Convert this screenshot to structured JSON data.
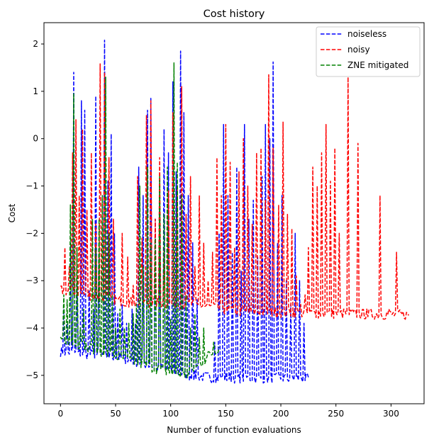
{
  "chart_data": {
    "type": "line",
    "title": "Cost history",
    "xlabel": "Number of function evaluations",
    "ylabel": "Cost",
    "xlim": [
      -15,
      330
    ],
    "ylim": [
      -5.6,
      2.45
    ],
    "xticks": [
      0,
      50,
      100,
      150,
      200,
      250,
      300
    ],
    "yticks": [
      -5,
      -4,
      -3,
      -2,
      -1,
      0,
      1,
      2
    ],
    "grid": false,
    "legend_position": "top-right",
    "series": [
      {
        "name": "noiseless",
        "color": "#0000ff",
        "dash": "dashed",
        "x_start": 0,
        "x_end": 225,
        "baseline": [
          [
            0,
            -4.5
          ],
          [
            50,
            -4.6
          ],
          [
            100,
            -4.9
          ],
          [
            115,
            -5.0
          ],
          [
            140,
            -5.05
          ],
          [
            225,
            -5.07
          ]
        ],
        "peaks": [
          [
            3,
            -3.6
          ],
          [
            6,
            -3.9
          ],
          [
            9,
            -2.2
          ],
          [
            12,
            1.4
          ],
          [
            15,
            -3.0
          ],
          [
            19,
            0.8
          ],
          [
            22,
            0.6
          ],
          [
            26,
            -3.2
          ],
          [
            30,
            -3.6
          ],
          [
            32,
            0.9
          ],
          [
            35,
            -2.5
          ],
          [
            40,
            2.08
          ],
          [
            43,
            -0.9
          ],
          [
            46,
            0.1
          ],
          [
            49,
            -2.0
          ],
          [
            52,
            -3.7
          ],
          [
            56,
            -3.5
          ],
          [
            60,
            -3.9
          ],
          [
            65,
            -3.6
          ],
          [
            68,
            -3.9
          ],
          [
            71,
            -0.6
          ],
          [
            75,
            -1.2
          ],
          [
            79,
            0.6
          ],
          [
            82,
            0.85
          ],
          [
            86,
            -1.7
          ],
          [
            90,
            -2.0
          ],
          [
            94,
            0.2
          ],
          [
            98,
            -0.3
          ],
          [
            102,
            1.2
          ],
          [
            105,
            -0.7
          ],
          [
            109,
            1.85
          ],
          [
            112,
            0.55
          ],
          [
            116,
            -1.2
          ],
          [
            120,
            -2.2
          ],
          [
            124,
            -3.4
          ],
          [
            140,
            -4.3
          ],
          [
            144,
            -2.0
          ],
          [
            148,
            0.3
          ],
          [
            152,
            -1.2
          ],
          [
            156,
            -2.4
          ],
          [
            160,
            -0.6
          ],
          [
            164,
            -2.8
          ],
          [
            167,
            0.3
          ],
          [
            171,
            -1.7
          ],
          [
            175,
            -1.3
          ],
          [
            179,
            -2.5
          ],
          [
            183,
            -0.8
          ],
          [
            186,
            0.3
          ],
          [
            190,
            0.0
          ],
          [
            193,
            1.62
          ],
          [
            197,
            -2.2
          ],
          [
            201,
            -1.2
          ],
          [
            205,
            -3.0
          ],
          [
            209,
            -3.5
          ],
          [
            213,
            -2.0
          ],
          [
            217,
            -3.0
          ],
          [
            221,
            -3.9
          ]
        ]
      },
      {
        "name": "noisy",
        "color": "#ff0000",
        "dash": "dashed",
        "x_start": 0,
        "x_end": 316,
        "baseline": [
          [
            0,
            -3.2
          ],
          [
            60,
            -3.45
          ],
          [
            120,
            -3.5
          ],
          [
            160,
            -3.65
          ],
          [
            250,
            -3.7
          ],
          [
            316,
            -3.72
          ]
        ],
        "peaks": [
          [
            4,
            -2.3
          ],
          [
            8,
            -2.7
          ],
          [
            11,
            -0.3
          ],
          [
            14,
            0.4
          ],
          [
            17,
            -1.2
          ],
          [
            20,
            0.2
          ],
          [
            24,
            -1.5
          ],
          [
            28,
            -0.3
          ],
          [
            32,
            -1.8
          ],
          [
            36,
            1.58
          ],
          [
            40,
            1.4
          ],
          [
            44,
            -0.4
          ],
          [
            48,
            -1.7
          ],
          [
            52,
            -3.4
          ],
          [
            56,
            -2.0
          ],
          [
            61,
            -2.5
          ],
          [
            66,
            -3.1
          ],
          [
            70,
            -0.8
          ],
          [
            74,
            -2.1
          ],
          [
            78,
            0.5
          ],
          [
            82,
            0.8
          ],
          [
            86,
            -1.7
          ],
          [
            90,
            -0.4
          ],
          [
            94,
            -2.3
          ],
          [
            98,
            -1.1
          ],
          [
            102,
            0.55
          ],
          [
            106,
            -1.0
          ],
          [
            110,
            1.1
          ],
          [
            114,
            -1.6
          ],
          [
            118,
            -0.8
          ],
          [
            122,
            -2.7
          ],
          [
            126,
            -1.2
          ],
          [
            130,
            -2.2
          ],
          [
            134,
            -3.0
          ],
          [
            138,
            -2.4
          ],
          [
            142,
            -0.4
          ],
          [
            146,
            -1.2
          ],
          [
            150,
            0.3
          ],
          [
            154,
            -0.5
          ],
          [
            158,
            -2.3
          ],
          [
            162,
            -0.7
          ],
          [
            166,
            0.0
          ],
          [
            170,
            -1.0
          ],
          [
            174,
            -1.8
          ],
          [
            178,
            -0.3
          ],
          [
            182,
            -0.2
          ],
          [
            186,
            -1.3
          ],
          [
            189,
            1.35
          ],
          [
            193,
            -0.2
          ],
          [
            198,
            -1.4
          ],
          [
            202,
            0.35
          ],
          [
            206,
            -1.6
          ],
          [
            210,
            -1.9
          ],
          [
            214,
            -2.9
          ],
          [
            218,
            -3.5
          ],
          [
            222,
            -3.3
          ],
          [
            225,
            -2.3
          ],
          [
            229,
            -0.6
          ],
          [
            233,
            -1.0
          ],
          [
            237,
            -0.3
          ],
          [
            241,
            0.3
          ],
          [
            245,
            -0.9
          ],
          [
            249,
            -0.2
          ],
          [
            253,
            -2.0
          ],
          [
            257,
            -3.6
          ],
          [
            261,
            1.3
          ],
          [
            265,
            -3.6
          ],
          [
            270,
            -0.1
          ],
          [
            278,
            -3.6
          ],
          [
            290,
            -1.2
          ],
          [
            298,
            -3.6
          ],
          [
            305,
            -2.4
          ]
        ]
      },
      {
        "name": "ZNE mitigated",
        "color": "#008000",
        "dash": "dashed",
        "x_start": 0,
        "x_end": 144,
        "baseline": [
          [
            0,
            -4.2
          ],
          [
            50,
            -4.6
          ],
          [
            100,
            -4.95
          ],
          [
            115,
            -5.0
          ],
          [
            144,
            -4.4
          ]
        ],
        "peaks": [
          [
            3,
            -3.3
          ],
          [
            6,
            -3.4
          ],
          [
            9,
            -1.4
          ],
          [
            12,
            0.95
          ],
          [
            15,
            -2.3
          ],
          [
            18,
            -4.0
          ],
          [
            21,
            -3.6
          ],
          [
            25,
            -4.5
          ],
          [
            29,
            -1.7
          ],
          [
            32,
            -2.3
          ],
          [
            35,
            -1.7
          ],
          [
            38,
            -1.2
          ],
          [
            41,
            1.3
          ],
          [
            44,
            -2.0
          ],
          [
            47,
            -3.3
          ],
          [
            50,
            -4.0
          ],
          [
            54,
            -3.6
          ],
          [
            58,
            -4.0
          ],
          [
            62,
            -3.9
          ],
          [
            66,
            -3.7
          ],
          [
            69,
            -3.5
          ],
          [
            72,
            -1.0
          ],
          [
            75,
            -2.7
          ],
          [
            79,
            -0.6
          ],
          [
            82,
            -2.2
          ],
          [
            86,
            -2.1
          ],
          [
            90,
            -0.8
          ],
          [
            94,
            -1.6
          ],
          [
            97,
            -0.6
          ],
          [
            100,
            -3.8
          ],
          [
            103,
            1.6
          ],
          [
            106,
            -0.5
          ],
          [
            110,
            -1.2
          ],
          [
            114,
            -3.3
          ],
          [
            118,
            -4.0
          ],
          [
            122,
            -3.7
          ],
          [
            126,
            -4.2
          ],
          [
            130,
            -4.0
          ],
          [
            134,
            -4.5
          ],
          [
            139,
            -4.3
          ]
        ]
      }
    ]
  }
}
